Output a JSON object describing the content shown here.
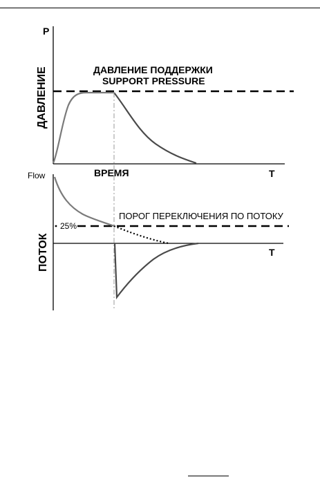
{
  "pressure_panel": {
    "axis_y_letter": "P",
    "axis_x_letter": "T",
    "vertical_label": "ДАВЛЕНИЕ",
    "support_label_ru": "ДАВЛЕНИЕ ПОДДЕРЖКИ",
    "support_label_en": "SUPPORT PRESSURE",
    "time_label": "ВРЕМЯ"
  },
  "flow_panel": {
    "axis_y_label": "Flow",
    "axis_x_letter": "T",
    "vertical_label": "ПОТОК",
    "threshold_label": "ПОРОГ ПЕРЕКЛЮЧЕНИЯ ПО ПОТОКУ",
    "threshold_percent": "25%"
  },
  "colors": {
    "line": "#000000",
    "rising_curve": "#7a7a7a",
    "falling_curve": "#4a4a4a",
    "cycle_marker": "#9a9a9a"
  }
}
